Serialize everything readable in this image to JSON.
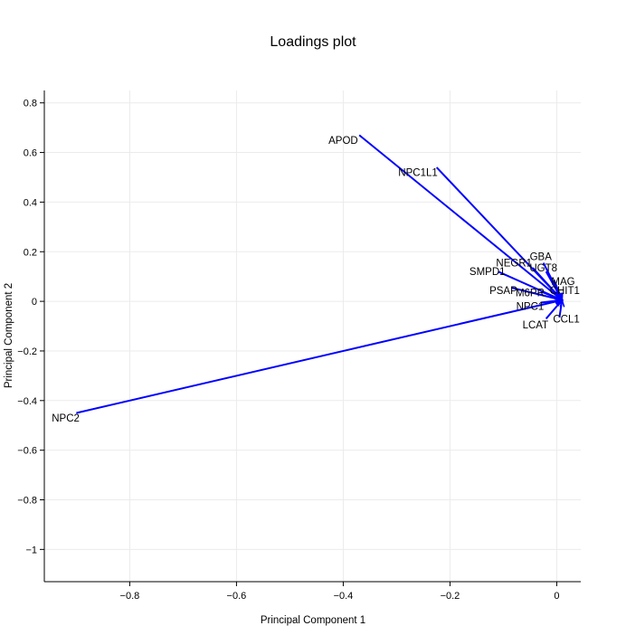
{
  "chart_data": {
    "type": "scatter",
    "title": "Loadings plot",
    "xlabel": "Principal Component 1",
    "ylabel": "Principal Component 2",
    "xlim": [
      -0.96,
      0.045
    ],
    "ylim": [
      -1.13,
      0.85
    ],
    "x_ticks": [
      -0.8,
      -0.6,
      -0.4,
      -0.2,
      0
    ],
    "x_tick_labels": [
      "−0.8",
      "−0.6",
      "−0.4",
      "−0.2",
      "0"
    ],
    "y_ticks": [
      0.8,
      0.6,
      0.4,
      0.2,
      0,
      -0.2,
      -0.4,
      -0.6,
      -0.8,
      -1
    ],
    "y_tick_labels": [
      "0.8",
      "0.6",
      "0.4",
      "0.2",
      "0",
      "−0.2",
      "−0.4",
      "−0.6",
      "−0.8",
      "−1"
    ],
    "grid": true,
    "origin": [
      0.01,
      0.005
    ],
    "arrow_color": "#0000ff",
    "points": [
      {
        "label": "APOD",
        "x": -0.37,
        "y": 0.67,
        "label_x": -0.4,
        "label_y": 0.65
      },
      {
        "label": "NPC1L1",
        "x": -0.225,
        "y": 0.54,
        "label_x": -0.26,
        "label_y": 0.52
      },
      {
        "label": "GBA",
        "x": -0.025,
        "y": 0.155,
        "label_x": -0.03,
        "label_y": 0.18
      },
      {
        "label": "NEGR1",
        "x": -0.045,
        "y": 0.135,
        "label_x": -0.08,
        "label_y": 0.155
      },
      {
        "label": "UGT8",
        "x": -0.02,
        "y": 0.12,
        "label_x": -0.025,
        "label_y": 0.135
      },
      {
        "label": "SMPD1",
        "x": -0.11,
        "y": 0.12,
        "label_x": -0.13,
        "label_y": 0.12
      },
      {
        "label": "MAG",
        "x": -0.005,
        "y": 0.085,
        "label_x": 0.012,
        "label_y": 0.08
      },
      {
        "label": "CHIT1",
        "x": 0.0,
        "y": 0.04,
        "label_x": 0.015,
        "label_y": 0.045
      },
      {
        "label": "M6PR",
        "x": -0.03,
        "y": 0.04,
        "label_x": -0.05,
        "label_y": 0.035
      },
      {
        "label": "PSAP",
        "x": -0.085,
        "y": 0.055,
        "label_x": -0.1,
        "label_y": 0.045
      },
      {
        "label": "NPC1",
        "x": -0.03,
        "y": -0.005,
        "label_x": -0.05,
        "label_y": -0.02
      },
      {
        "label": "LCAT",
        "x": -0.02,
        "y": -0.07,
        "label_x": -0.04,
        "label_y": -0.095
      },
      {
        "label": "CCL1",
        "x": 0.005,
        "y": -0.065,
        "label_x": 0.018,
        "label_y": -0.07
      },
      {
        "label": "NPC2",
        "x": -0.9,
        "y": -0.45,
        "label_x": -0.92,
        "label_y": -0.47
      }
    ]
  }
}
